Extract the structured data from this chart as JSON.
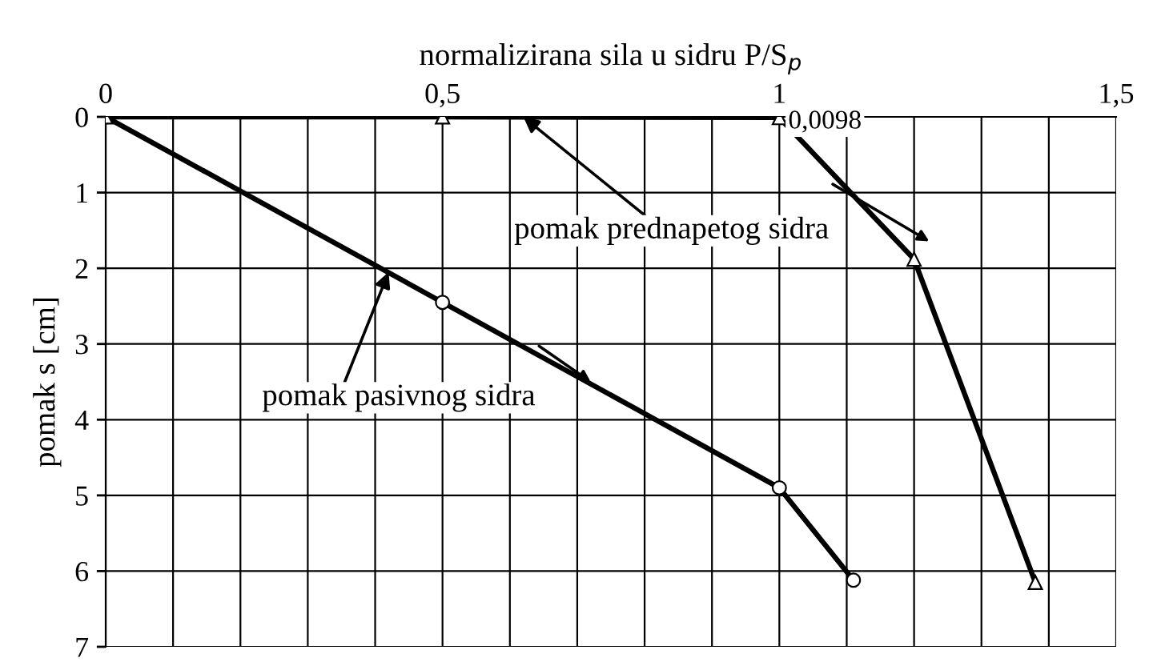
{
  "chart_data": {
    "type": "line",
    "xlabel": "normalizirana sila u sidru P/S$_{p}$",
    "ylabel": "pomak s [cm]",
    "xlim": [
      0,
      1.5
    ],
    "ylim": [
      7,
      0
    ],
    "xticks": [
      0,
      {
        "value": 0.1,
        "label": null
      },
      {
        "value": 0.2,
        "label": null
      },
      {
        "value": 0.3,
        "label": null
      },
      {
        "value": 0.4,
        "label": null
      },
      {
        "value": 0.5,
        "label": "0,5"
      },
      {
        "value": 0.6,
        "label": null
      },
      {
        "value": 0.7,
        "label": null
      },
      {
        "value": 0.8,
        "label": null
      },
      {
        "value": 0.9,
        "label": null
      },
      1,
      {
        "value": 1.1,
        "label": null
      },
      {
        "value": 1.2,
        "label": null
      },
      {
        "value": 1.3,
        "label": null
      },
      {
        "value": 1.4,
        "label": null
      },
      {
        "value": 1.5,
        "label": "1,5"
      }
    ],
    "yticks": [
      0,
      1,
      2,
      3,
      4,
      5,
      6,
      7
    ],
    "grid": true,
    "legend": false,
    "series": [
      {
        "color": "#000000",
        "marker": "circle",
        "x": [
          0,
          0.5,
          1,
          1.11
        ],
        "values": [
          0,
          2.45,
          4.9,
          6.12
        ]
      },
      {
        "color": "#000000",
        "marker": "triangle",
        "x": [
          0,
          0.5,
          1,
          1.2,
          1.38
        ],
        "values": [
          0,
          0,
          0.0098,
          1.88,
          6.15
        ],
        "value_labels": [
          null,
          null,
          "0,0098",
          null,
          null
        ]
      }
    ],
    "annotations": [
      {
        "text": "pomak prednapetog sidra",
        "x": 0.62,
        "y": 0
      },
      {
        "text": "pomak pasivnog sidra",
        "x": 0.42,
        "y": 2.05
      }
    ]
  }
}
